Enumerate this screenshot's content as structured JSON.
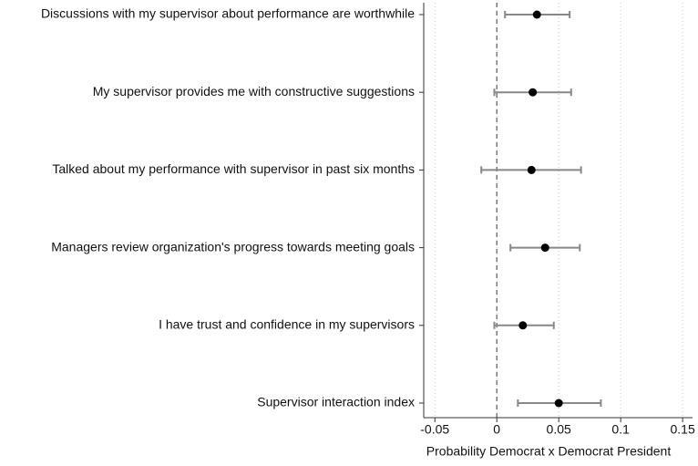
{
  "chart_data": {
    "type": "coefplot",
    "x_label": "Probability Democrat x Democrat President",
    "categories": [
      "Discussions with my supervisor about performance are worthwhile",
      "My supervisor provides me with constructive suggestions",
      "Talked about my performance with supervisor in past six months",
      "Managers review organization's progress towards meeting goals",
      "I have trust and confidence in my supervisors",
      "Supervisor interaction index"
    ],
    "values": [
      0.0324,
      0.029,
      0.028,
      0.039,
      0.021,
      0.05
    ],
    "lower": [
      0.0066,
      -0.002,
      -0.0125,
      0.011,
      -0.002,
      0.017
    ],
    "upper": [
      0.0588,
      0.06,
      0.068,
      0.067,
      0.046,
      0.084
    ],
    "color": "#000000",
    "ci_color": "#888888",
    "xlim": [
      -0.059,
      0.158
    ],
    "xticks": [
      -0.05,
      0,
      0.05,
      0.1,
      0.15
    ],
    "reference_line": 0,
    "grid": true
  }
}
